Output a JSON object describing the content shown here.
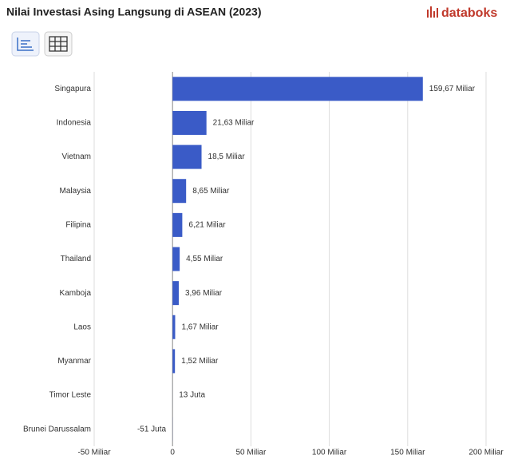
{
  "header": {
    "logo": "databoks"
  },
  "chart_data": {
    "type": "bar",
    "orientation": "horizontal",
    "title": "Nilai Investasi Asing Langsung di ASEAN (2023)",
    "categories": [
      "Singapura",
      "Indonesia",
      "Vietnam",
      "Malaysia",
      "Filipina",
      "Thailand",
      "Kamboja",
      "Laos",
      "Myanmar",
      "Timor Leste",
      "Brunei Darussalam"
    ],
    "values": [
      159.67,
      21.63,
      18.5,
      8.65,
      6.21,
      4.55,
      3.96,
      1.67,
      1.52,
      0.013,
      -0.051
    ],
    "value_labels": [
      "159,67 Miliar",
      "21,63 Miliar",
      "18,5 Miliar",
      "8,65 Miliar",
      "6,21 Miliar",
      "4,55 Miliar",
      "3,96 Miliar",
      "1,67 Miliar",
      "1,52 Miliar",
      "13 Juta",
      "-51 Juta"
    ],
    "color": "#3a5bc7",
    "xlim": [
      -50,
      200
    ],
    "xticks": [
      {
        "value": -50,
        "label": "-50 Miliar"
      },
      0,
      {
        "value": 50,
        "label": "50 Miliar"
      },
      {
        "value": 100,
        "label": "100 Miliar"
      },
      {
        "value": 150,
        "label": "150 Miliar"
      },
      {
        "value": 200,
        "label": "200 Miliar"
      }
    ],
    "grid": true
  }
}
